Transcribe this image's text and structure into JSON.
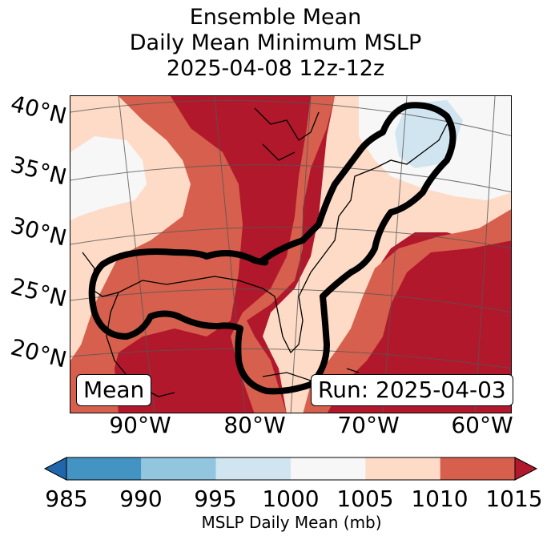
{
  "title": {
    "line1": "Ensemble Mean",
    "line2": "Daily Mean Minimum MSLP",
    "line3": "2025-04-08 12z-12z"
  },
  "map": {
    "region": "Eastern United States, Gulf of Mexico and western Atlantic",
    "lat_labels": [
      "40°N",
      "35°N",
      "30°N",
      "25°N",
      "20°N"
    ],
    "lon_labels": [
      "90°W",
      "80°W",
      "70°W",
      "60°W"
    ],
    "mean_box": "Mean",
    "run_box": "Run: 2025-04-03",
    "contour": "black outline enclosing the Gulf of Mexico low and coastal corridor to the northeast"
  },
  "colorbar": {
    "label": "MSLP Daily Mean (mb)",
    "ticks": [
      "985",
      "990",
      "995",
      "1000",
      "1005",
      "1010",
      "1015"
    ],
    "bins": [
      {
        "range": "<985",
        "color": "#2166ac"
      },
      {
        "range": "985-990",
        "color": "#4393c3"
      },
      {
        "range": "990-995",
        "color": "#92c5de"
      },
      {
        "range": "995-1000",
        "color": "#d1e5f0"
      },
      {
        "range": "1000-1005",
        "color": "#f7f7f7"
      },
      {
        "range": "1005-1010",
        "color": "#fddbc7"
      },
      {
        "range": "1010-1015",
        "color": "#d6604d"
      },
      {
        "range": ">1015",
        "color": "#b2182b"
      }
    ]
  }
}
